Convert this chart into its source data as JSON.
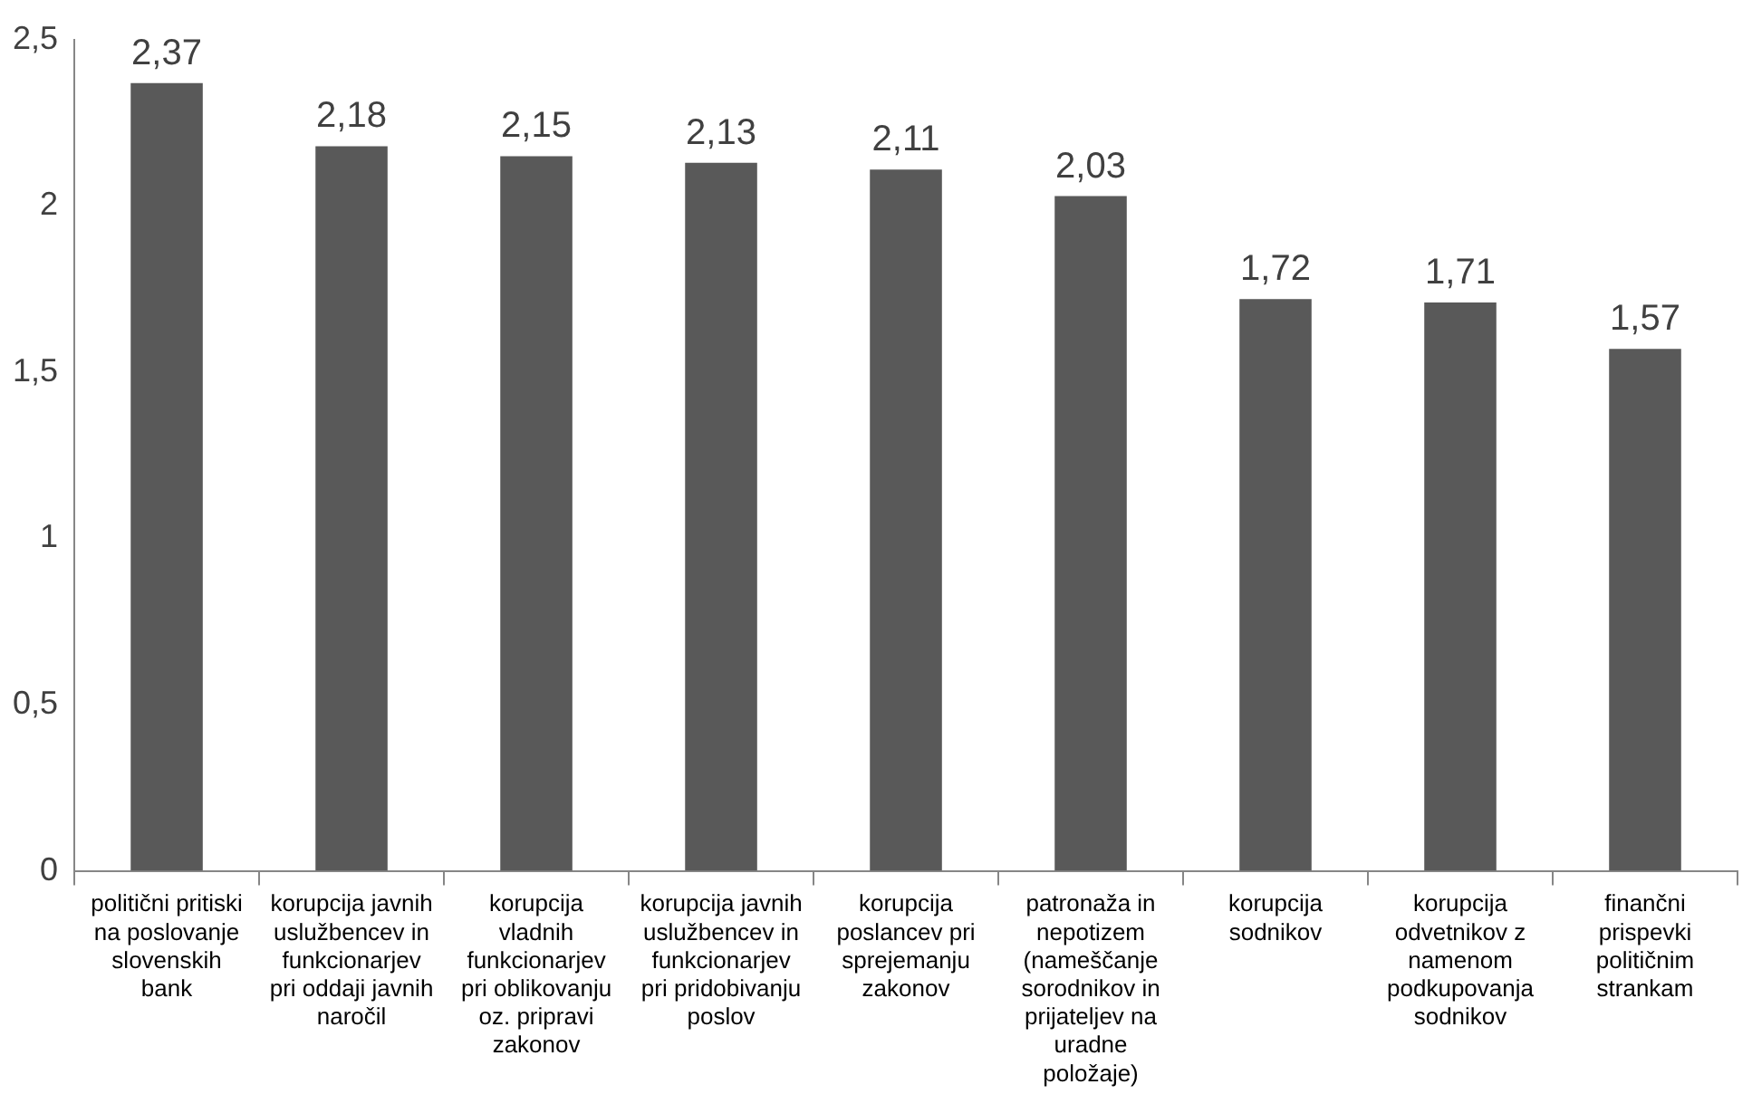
{
  "chart_data": {
    "type": "bar",
    "categories": [
      "politični pritiski na poslovanje slovenskih bank",
      "korupcija javnih uslužbencev in funkcionarjev pri oddaji javnih naročil",
      "korupcija vladnih funkcionarjev pri oblikovanju oz. pripravi zakonov",
      "korupcija javnih uslužbencev in funkcionarjev pri pridobivanju poslov",
      "korupcija poslancev pri sprejemanju zakonov",
      "patronaža in nepotizem (nameščanje sorodnikov in prijateljev na uradne položaje)",
      "korupcija sodnikov",
      "korupcija odvetnikov z namenom podkupovanja sodnikov",
      "finančni prispevki političnim strankam"
    ],
    "values": [
      2.37,
      2.18,
      2.15,
      2.13,
      2.11,
      2.03,
      1.72,
      1.71,
      1.57
    ],
    "value_labels": [
      "2,37",
      "2,18",
      "2,15",
      "2,13",
      "2,11",
      "2,03",
      "1,72",
      "1,71",
      "1,57"
    ],
    "color": "#595959",
    "ylim": [
      0,
      2.5
    ],
    "yticks": [
      0,
      {
        "value": 0.5,
        "label": "0,5"
      },
      1,
      {
        "value": 1.5,
        "label": "1,5"
      },
      2,
      {
        "value": 2.5,
        "label": "2,5"
      }
    ],
    "grid": false,
    "legend": false
  }
}
